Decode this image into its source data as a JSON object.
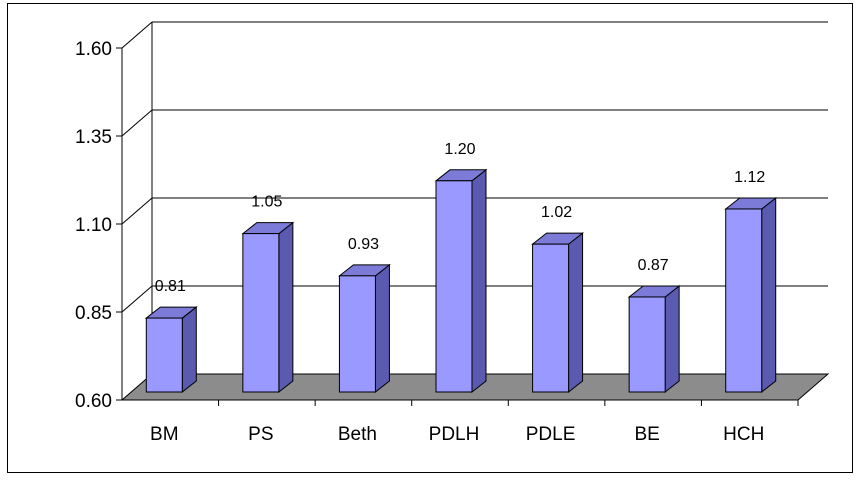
{
  "chart_data": {
    "type": "bar",
    "categories": [
      "BM",
      "PS",
      "Beth",
      "PDLH",
      "PDLE",
      "BE",
      "HCH"
    ],
    "values": [
      0.81,
      1.05,
      0.93,
      1.2,
      1.02,
      0.87,
      1.12
    ],
    "data_labels": [
      "0.81",
      "1.05",
      "0.93",
      "1.20",
      "1.02",
      "0.87",
      "1.12"
    ],
    "ylim": [
      0.6,
      1.6
    ],
    "yticks": [
      0.6,
      0.85,
      1.1,
      1.35,
      1.6
    ],
    "ytick_labels": [
      "0.60",
      "0.85",
      "1.10",
      "1.35",
      "1.60"
    ],
    "title": "",
    "xlabel": "",
    "ylabel": "",
    "grid": true,
    "legend": "none",
    "style": "3d-column",
    "colors": {
      "bar_front": "#9999ff",
      "bar_side": "#5a5ab0",
      "bar_top": "#7c7cd8",
      "floor": "#8c8c8c",
      "gridline": "#000000"
    }
  }
}
